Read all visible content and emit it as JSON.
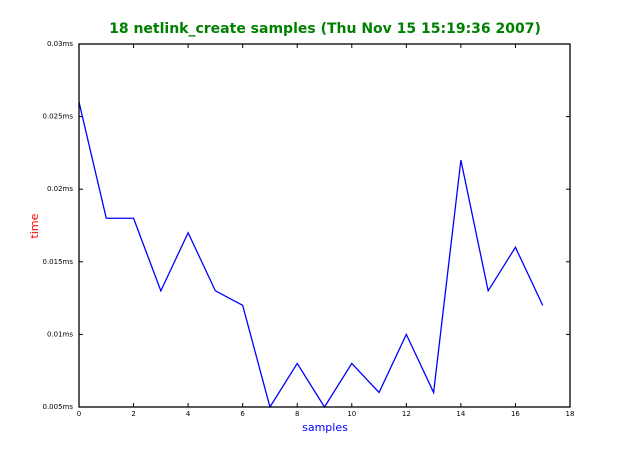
{
  "chart_data": {
    "type": "line",
    "title": "18 netlink_create samples (Thu Nov 15 15:19:36 2007)",
    "xlabel": "samples",
    "ylabel": "time",
    "x": [
      0,
      1,
      2,
      3,
      4,
      5,
      6,
      7,
      8,
      9,
      10,
      11,
      12,
      13,
      14,
      15,
      16,
      17
    ],
    "series": [
      {
        "color": "#0000ff",
        "values": [
          0.026,
          0.018,
          0.018,
          0.013,
          0.017,
          0.013,
          0.012,
          0.005,
          0.008,
          0.005,
          0.008,
          0.006,
          0.01,
          0.006,
          0.022,
          0.013,
          0.016,
          0.012
        ]
      }
    ],
    "xlim": [
      0,
      18
    ],
    "xticks": [
      0,
      2,
      4,
      6,
      8,
      10,
      12,
      14,
      16,
      18
    ],
    "ylim": [
      0.005,
      0.03
    ],
    "yticks": [
      {
        "value": 0.005,
        "label": "0.005ms"
      },
      {
        "value": 0.01,
        "label": "0.01ms"
      },
      {
        "value": 0.015,
        "label": "0.015ms"
      },
      {
        "value": 0.02,
        "label": "0.02ms"
      },
      {
        "value": 0.025,
        "label": "0.025ms"
      },
      {
        "value": 0.03,
        "label": "0.03ms"
      }
    ],
    "grid": false
  }
}
